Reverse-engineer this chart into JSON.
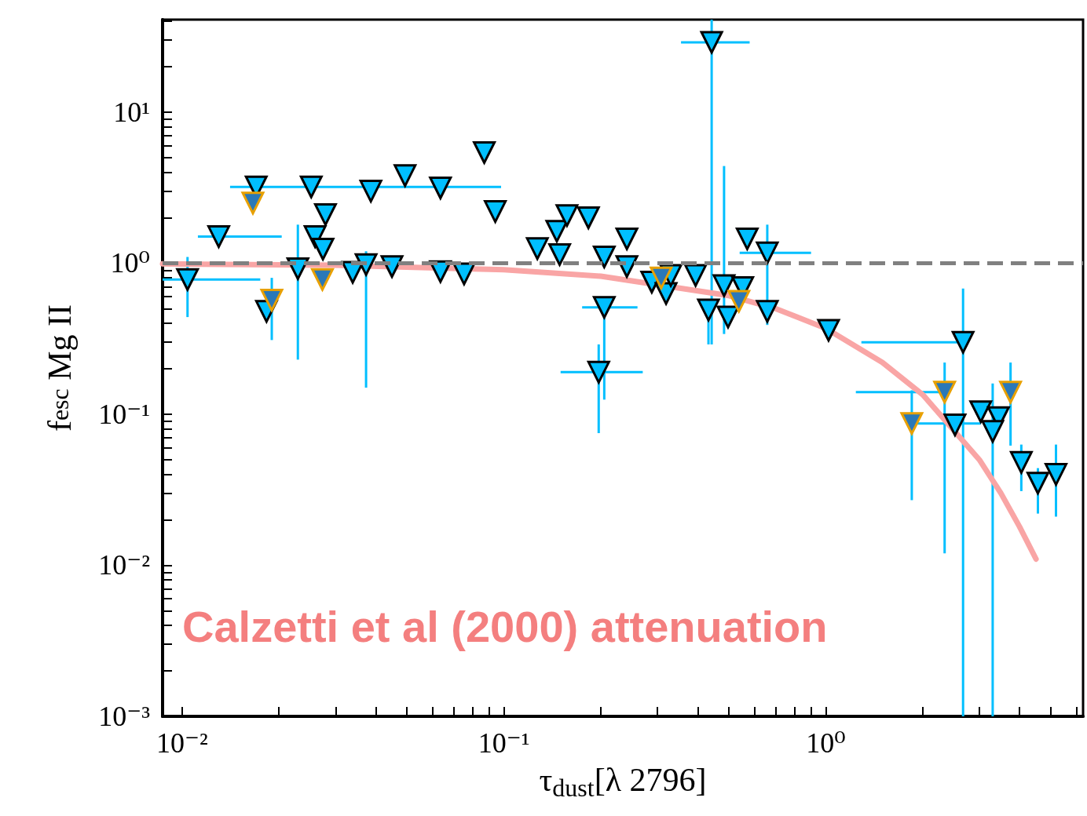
{
  "chart_data": {
    "type": "scatter",
    "xlabel": "τ$_{dust}$[λ 2796]",
    "ylabel": "f$_{esc}$ Mg II",
    "log": "xy",
    "marker": "triangle",
    "grid": false,
    "xlim": [
      0.0087,
      6.3
    ],
    "ylim": [
      0.001,
      41
    ],
    "xticks": [
      {
        "value": 0.01,
        "label": "10⁻²"
      },
      {
        "value": 0.02,
        "label": null
      },
      {
        "value": 0.03,
        "label": null
      },
      {
        "value": 0.04,
        "label": null
      },
      {
        "value": 0.05,
        "label": null
      },
      {
        "value": 0.06,
        "label": null
      },
      {
        "value": 0.07,
        "label": null
      },
      {
        "value": 0.08,
        "label": null
      },
      {
        "value": 0.09,
        "label": null
      },
      {
        "value": 0.1,
        "label": "10⁻¹"
      },
      {
        "value": 0.2,
        "label": null
      },
      {
        "value": 0.3,
        "label": null
      },
      {
        "value": 0.4,
        "label": null
      },
      {
        "value": 0.5,
        "label": null
      },
      {
        "value": 0.6,
        "label": null
      },
      {
        "value": 0.7,
        "label": null
      },
      {
        "value": 0.8,
        "label": null
      },
      {
        "value": 0.9,
        "label": null
      },
      {
        "value": 1,
        "label": "10⁰"
      },
      {
        "value": 2,
        "label": null
      },
      {
        "value": 3,
        "label": null
      },
      {
        "value": 4,
        "label": null
      },
      {
        "value": 5,
        "label": null
      },
      {
        "value": 6,
        "label": null
      }
    ],
    "yticks": [
      {
        "value": 0.001,
        "label": "10⁻³"
      },
      {
        "value": 0.002,
        "label": null
      },
      {
        "value": 0.003,
        "label": null
      },
      {
        "value": 0.004,
        "label": null
      },
      {
        "value": 0.005,
        "label": null
      },
      {
        "value": 0.006,
        "label": null
      },
      {
        "value": 0.007,
        "label": null
      },
      {
        "value": 0.008,
        "label": null
      },
      {
        "value": 0.009,
        "label": null
      },
      {
        "value": 0.01,
        "label": "10⁻²"
      },
      {
        "value": 0.02,
        "label": null
      },
      {
        "value": 0.03,
        "label": null
      },
      {
        "value": 0.04,
        "label": null
      },
      {
        "value": 0.05,
        "label": null
      },
      {
        "value": 0.06,
        "label": null
      },
      {
        "value": 0.07,
        "label": null
      },
      {
        "value": 0.08,
        "label": null
      },
      {
        "value": 0.09,
        "label": null
      },
      {
        "value": 0.1,
        "label": "10⁻¹"
      },
      {
        "value": 0.2,
        "label": null
      },
      {
        "value": 0.3,
        "label": null
      },
      {
        "value": 0.4,
        "label": null
      },
      {
        "value": 0.5,
        "label": null
      },
      {
        "value": 0.6,
        "label": null
      },
      {
        "value": 0.7,
        "label": null
      },
      {
        "value": 0.8,
        "label": null
      },
      {
        "value": 0.9,
        "label": null
      },
      {
        "value": 1,
        "label": "10⁰"
      },
      {
        "value": 2,
        "label": null
      },
      {
        "value": 3,
        "label": null
      },
      {
        "value": 4,
        "label": null
      },
      {
        "value": 5,
        "label": null
      },
      {
        "value": 6,
        "label": null
      },
      {
        "value": 7,
        "label": null
      },
      {
        "value": 8,
        "label": null
      },
      {
        "value": 9,
        "label": null
      },
      {
        "value": 10,
        "label": "10¹"
      },
      {
        "value": 20,
        "label": null
      },
      {
        "value": 30,
        "label": null
      },
      {
        "value": 40,
        "label": null
      }
    ],
    "ref_lines": [
      {
        "axis": "y",
        "value": 1,
        "color": "#808080",
        "line_style": "dashed"
      }
    ],
    "annotations": [
      "Calzetti et al (2000) attenuation"
    ],
    "series": [
      {
        "color": "#00bfff",
        "x": [
          0.0104,
          0.013,
          0.017,
          0.0252,
          0.0279,
          0.0259,
          0.0274,
          0.0183,
          0.0229,
          0.0339,
          0.0373,
          0.0386,
          0.0449,
          0.0493,
          0.0635,
          0.0635,
          0.0752,
          0.0869,
          0.094,
          0.127,
          0.146,
          0.149,
          0.157,
          0.183,
          0.205,
          0.205,
          0.197,
          0.241,
          0.241,
          0.288,
          0.319,
          0.33,
          0.394,
          0.442,
          0.432,
          0.483,
          0.497,
          0.552,
          0.57,
          0.658,
          0.658,
          1.02,
          2.67,
          2.52,
          3.03,
          3.44,
          3.3,
          4.05,
          4.56,
          5.19
        ],
        "values": [
          0.78,
          1.5,
          3.2,
          3.2,
          2.1,
          1.5,
          1.24,
          0.48,
          0.92,
          0.87,
          0.98,
          3.0,
          0.95,
          3.8,
          3.15,
          0.88,
          0.85,
          5.4,
          2.2,
          1.25,
          1.63,
          1.14,
          2.07,
          2.0,
          1.1,
          0.51,
          0.19,
          1.45,
          0.95,
          0.75,
          0.63,
          0.83,
          0.83,
          29,
          0.49,
          0.71,
          0.44,
          0.69,
          1.45,
          1.17,
          0.48,
          0.36,
          0.3,
          0.085,
          0.104,
          0.095,
          0.077,
          0.048,
          0.035,
          0.04
        ],
        "errors": [
          [
            0.44,
            1.1
          ],
          null,
          null,
          null,
          null,
          null,
          null,
          null,
          [
            0.23,
            1.8
          ],
          null,
          [
            0.15,
            1.2
          ],
          null,
          null,
          null,
          null,
          null,
          null,
          null,
          null,
          null,
          null,
          null,
          null,
          null,
          null,
          [
            0.125,
            0.5
          ],
          [
            0.075,
            0.29
          ],
          null,
          null,
          null,
          null,
          null,
          null,
          [
            0.29,
            41
          ],
          [
            0.29,
            0.5
          ],
          [
            0.34,
            4.4
          ],
          null,
          null,
          null,
          [
            0.39,
            1.8
          ],
          null,
          null,
          [
            0.001,
            0.68
          ],
          null,
          null,
          null,
          [
            0.001,
            0.16
          ],
          [
            0.031,
            0.063
          ],
          [
            0.022,
            0.044
          ],
          [
            0.021,
            0.063
          ]
        ],
        "xerrors": [
          [
            0.0087,
            0.0175
          ],
          [
            0.0112,
            0.0204
          ],
          [
            0.0141,
            0.098
          ],
          null,
          null,
          null,
          null,
          null,
          null,
          null,
          null,
          null,
          null,
          null,
          null,
          null,
          null,
          null,
          null,
          null,
          null,
          null,
          null,
          null,
          null,
          [
            0.175,
            0.26
          ],
          [
            0.15,
            0.27
          ],
          null,
          null,
          null,
          null,
          null,
          null,
          [
            0.355,
            0.58
          ],
          null,
          null,
          null,
          null,
          null,
          [
            0.54,
            0.9
          ],
          null,
          null,
          [
            1.29,
            2.67
          ],
          null,
          null,
          null,
          null,
          null,
          null,
          null
        ]
      },
      {
        "color": "#2a78b8",
        "x": [
          0.0166,
          0.019,
          0.0273,
          0.308,
          0.537,
          1.85,
          2.34,
          3.75
        ],
        "values": [
          2.5,
          0.57,
          0.78,
          0.8,
          0.56,
          0.087,
          0.14,
          0.14
        ],
        "errors": [
          null,
          [
            0.31,
            0.8
          ],
          null,
          null,
          null,
          [
            0.027,
            0.144
          ],
          [
            0.012,
            0.22
          ],
          [
            0.062,
            0.22
          ]
        ],
        "xerrors": [
          null,
          null,
          null,
          null,
          null,
          [
            1.85,
            3.03
          ],
          [
            1.24,
            2.34
          ],
          null
        ]
      },
      {
        "type": "line",
        "color": "#f9a5a5",
        "marker": "none",
        "x": [
          0.0087,
          0.03,
          0.1,
          0.2,
          0.5,
          0.7,
          1,
          1.5,
          2,
          3,
          3.5,
          4,
          4.5
        ],
        "values": [
          0.99,
          0.97,
          0.905,
          0.82,
          0.61,
          0.5,
          0.37,
          0.22,
          0.135,
          0.05,
          0.03,
          0.018,
          0.011
        ]
      }
    ]
  }
}
